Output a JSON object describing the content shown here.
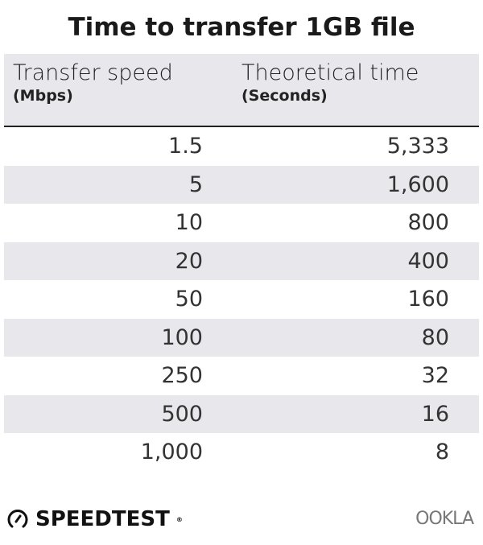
{
  "chart_data": {
    "type": "table",
    "title": "Time to transfer 1GB file",
    "columns": [
      {
        "label": "Transfer speed",
        "unit": "(Mbps)"
      },
      {
        "label": "Theoretical time",
        "unit": "(Seconds)"
      }
    ],
    "rows": [
      [
        "1.5",
        "5,333"
      ],
      [
        "5",
        "1,600"
      ],
      [
        "10",
        "800"
      ],
      [
        "20",
        "400"
      ],
      [
        "50",
        "160"
      ],
      [
        "100",
        "80"
      ],
      [
        "250",
        "32"
      ],
      [
        "500",
        "16"
      ],
      [
        "1,000",
        "8"
      ]
    ],
    "row_stripe_color": "#e8e8ec"
  },
  "footer": {
    "brand": "SPEEDTEST",
    "brand_icon": "speedometer-icon",
    "partner": "OOKLA"
  }
}
